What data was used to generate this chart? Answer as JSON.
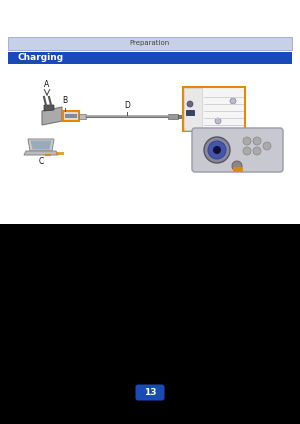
{
  "background_color": "#000000",
  "content_bg": "#ffffff",
  "header_bar_color": "#c8d0e8",
  "header_text": "Preparation",
  "header_text_color": "#444444",
  "header_border_color": "#8899cc",
  "subheader_bar_color": "#1a4ab8",
  "subheader_text": "Charging",
  "subheader_text_color": "#ffffff",
  "orange_color": "#e88800",
  "cable_color": "#888888",
  "dark_label_color": "#111111",
  "page_number_color": "#1a4ab8",
  "page_number": "13",
  "adaptor_body_color": "#aaaaaa",
  "adaptor_edge_color": "#666666",
  "usb_box_color": "#dddddd",
  "camera_body_color": "#bbbbcc",
  "camera_port_bg": "#eeeeee",
  "laptop_screen_color": "#cccccc",
  "laptop_screen_dark": "#8899aa",
  "laptop_base_color": "#bbbbbb"
}
